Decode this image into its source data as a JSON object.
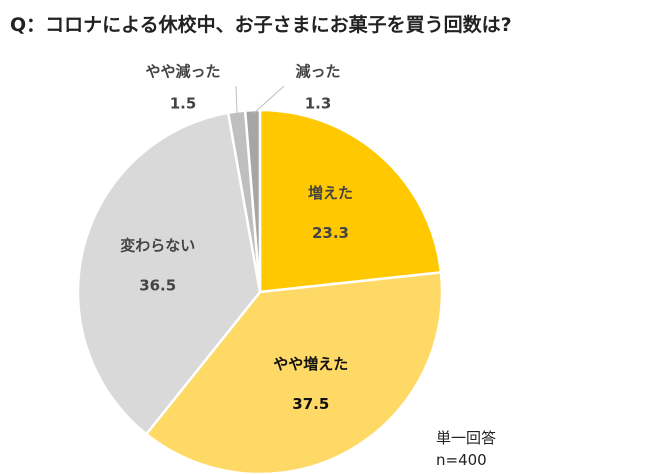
{
  "title": "Q：コロナによる休校中、お子さまにお菓子を買う回数は?",
  "chart_data": {
    "type": "pie",
    "start_angle_deg": 0,
    "direction": "clockwise",
    "slices": [
      {
        "label": "増えた",
        "value": 23.3,
        "color": "#FFC800",
        "label_color": "#444444",
        "label_inside": true
      },
      {
        "label": "やや増えた",
        "value": 37.5,
        "color": "#FFD966",
        "label_color": "#111111",
        "label_inside": true
      },
      {
        "label": "変わらない",
        "value": 36.5,
        "color": "#D9D9D9",
        "label_color": "#444444",
        "label_inside": true
      },
      {
        "label": "やや減った",
        "value": 1.5,
        "color": "#BFBFBF",
        "label_color": "#444444",
        "label_inside": false
      },
      {
        "label": "減った",
        "value": 1.3,
        "color": "#A6A6A6",
        "label_color": "#444444",
        "label_inside": false
      }
    ]
  },
  "note": {
    "line1": "単一回答",
    "line2": "n=400"
  }
}
